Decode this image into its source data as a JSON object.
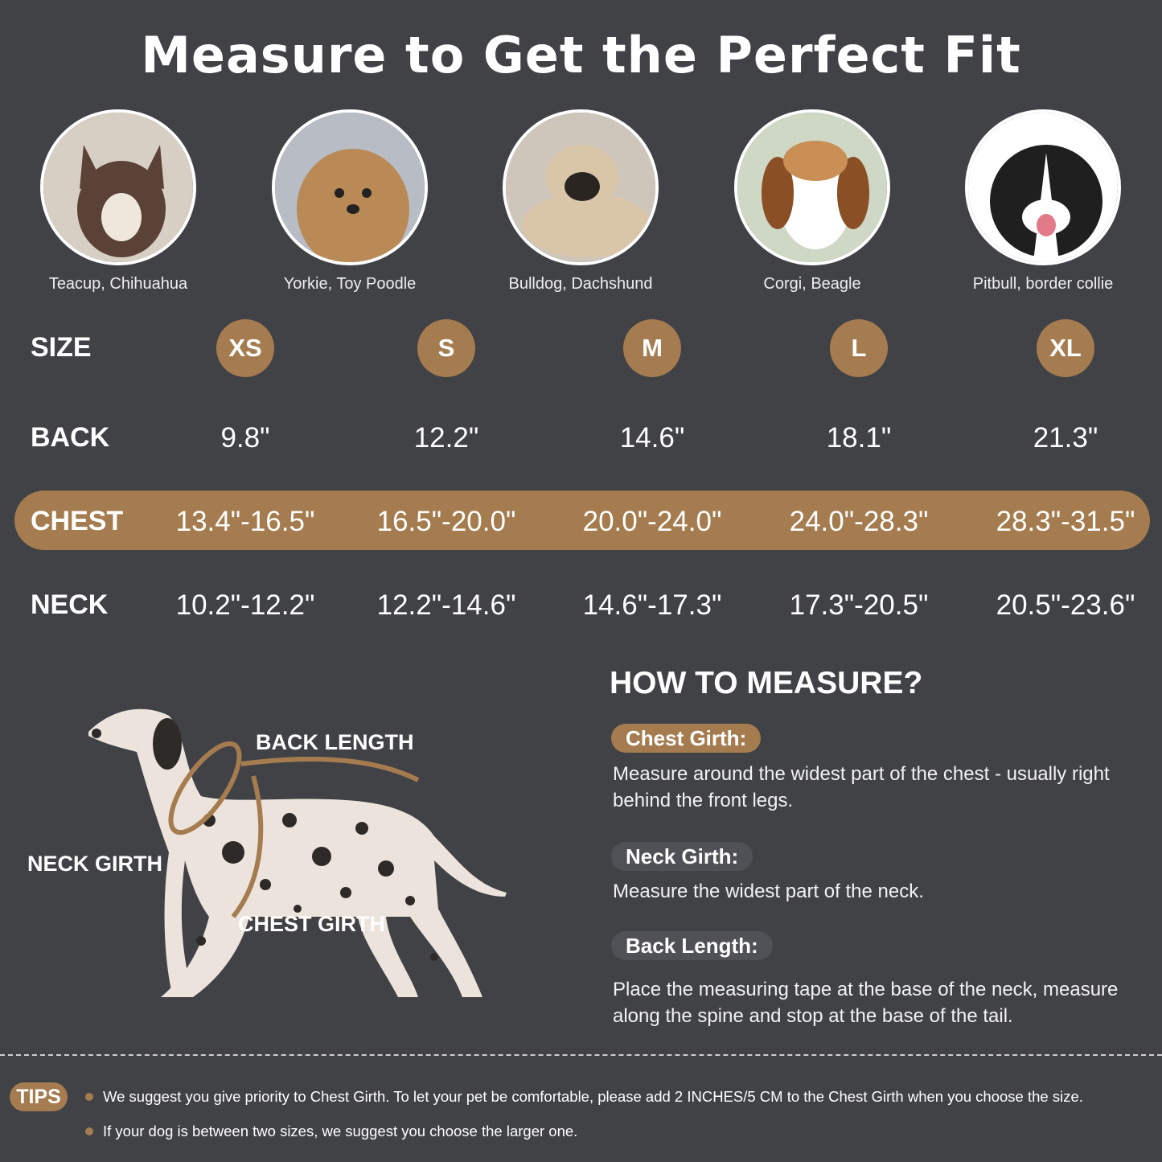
{
  "title": "Measure to Get the Perfect Fit",
  "breeds": [
    {
      "caption": "Teacup, Chihuahua",
      "fill": "#b9a58f"
    },
    {
      "caption": "Yorkie, Toy Poodle",
      "fill": "#b98a55"
    },
    {
      "caption": "Bulldog, Dachshund",
      "fill": "#d9c6a8"
    },
    {
      "caption": "Corgi, Beagle",
      "fill": "#c98f55"
    },
    {
      "caption": "Pitbull, border collie",
      "fill": "#2a2a2a"
    }
  ],
  "table": {
    "labels": {
      "size": "SIZE",
      "back": "BACK",
      "chest": "CHEST",
      "neck": "NECK"
    },
    "sizes": [
      "XS",
      "S",
      "M",
      "L",
      "XL"
    ],
    "back": [
      "9.8\"",
      "12.2\"",
      "14.6\"",
      "18.1\"",
      "21.3\""
    ],
    "chest": [
      "13.4\"-16.5\"",
      "16.5\"-20.0\"",
      "20.0\"-24.0\"",
      "24.0\"-28.3\"",
      "28.3\"-31.5\""
    ],
    "neck": [
      "10.2\"-12.2\"",
      "12.2\"-14.6\"",
      "14.6\"-17.3\"",
      "17.3\"-20.5\"",
      "20.5\"-23.6\""
    ]
  },
  "diagram": {
    "back_length": "BACK LENGTH",
    "neck_girth": "NECK GIRTH",
    "chest_girth": "CHEST GIRTH"
  },
  "how_to": {
    "title": "HOW TO MEASURE?",
    "items": [
      {
        "label": "Chest Girth:",
        "text": "Measure around the widest part of the chest - usually right behind the front legs."
      },
      {
        "label": "Neck Girth:",
        "text": "Measure the widest part of the neck."
      },
      {
        "label": "Back Length:",
        "text": "Place the measuring tape at the base of the neck, measure along the spine and stop at the base of the tail."
      }
    ]
  },
  "tips": {
    "label": "TIPS",
    "items": [
      "We suggest you give priority to Chest Girth. To let your pet be comfortable, please add 2 INCHES/5 CM to the Chest Girth when you choose the size.",
      "If your dog is between two sizes, we suggest you choose the larger one."
    ]
  },
  "colors": {
    "background": "#414246",
    "accent": "#a57c4f",
    "pill": "#505156"
  }
}
